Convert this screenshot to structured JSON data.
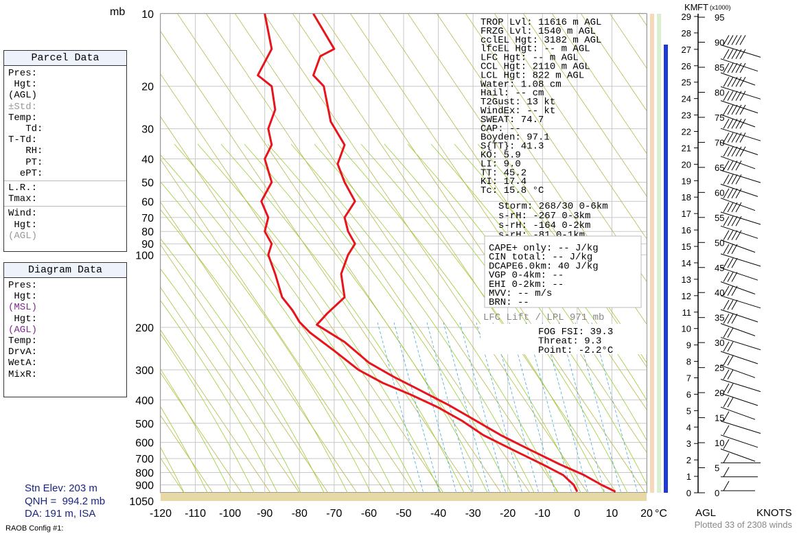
{
  "header": {
    "pressure_unit": "mb"
  },
  "parcel_panel": {
    "title": "Parcel Data",
    "rows": [
      "Pres:",
      " Hgt:",
      "(AGL)",
      "±Std:",
      "Temp:",
      "   Td:",
      "T-Td:",
      "   RH:",
      "   PT:",
      "  ePT:"
    ],
    "rows2": [
      "L.R.:",
      "Tmax:"
    ],
    "rows3": [
      "Wind:",
      " Hgt:",
      "(AGL)"
    ]
  },
  "diagram_panel": {
    "title": "Diagram Data",
    "rows": [
      "Pres:",
      " Hgt:",
      "(MSL)",
      " Hgt:",
      "(AGL)",
      "Temp:",
      "",
      "DrvA:",
      "WetA:",
      "MixR:"
    ]
  },
  "station": {
    "elev": "Stn Elev: 203 m",
    "qnh": "QNH =  994.2 mb",
    "da": "DA: 191 m, ISA"
  },
  "config_label": "RAOB Config #1:",
  "footer": "Plotted 33 of 2308 winds",
  "indices": [
    "    TROP Lvl: 11616 m AGL",
    "    FRZG Lvl:  1540 m AGL",
    "    cclEL Hgt:  3182 m AGL",
    "    lfcEL Hgt:    -- m AGL",
    "     LFC Hgt:    -- m AGL",
    "     CCL Hgt:  2110 m AGL",
    "     LCL Hgt:   822 m AGL",
    "       Water:  1.08 cm",
    "        Hail:    -- cm",
    "      T2Gust:    13 kt",
    "     WindEx:    -- kt",
    "      SWEAT:  74.7",
    "        CAP:   --",
    "     Boyden:  97.1",
    "      S{TT}:  41.3",
    "         KO:   5.9",
    "         LI:   9.0",
    "         TT:  45.2",
    "         KI:  17.4",
    "         Tc:  15.8 °C"
  ],
  "storm": [
    "   Storm: 268/30 0-6km",
    "   s-rH: -267  0-3km",
    "   s-rH: -164  0-2km",
    "   s-rH:  -81  0-1km"
  ],
  "cape": [
    " CAPE+ only:     -- J/kg",
    "  CIN total:     -- J/kg",
    "DCAPE6.0km:     40 J/kg",
    "  VGP 0-4km:     --",
    "  EHI 0-2km:     --",
    "         MVV:     -- m/s",
    "         BRN:     --"
  ],
  "lfc_lift": "LFC Lift / LPL 971 mb",
  "fog": [
    "FOG FSI: 39.3",
    " Threat:  9.3",
    "  Point: -2.2°C"
  ],
  "chart_data": {
    "type": "line",
    "title": "",
    "xlabel": "°C",
    "ylabel": "mb",
    "x_ticks": [
      -120,
      -110,
      -100,
      -90,
      -80,
      -70,
      -60,
      -50,
      -40,
      -30,
      -20,
      -10,
      0,
      10,
      20
    ],
    "p_ticks": [
      10,
      20,
      30,
      40,
      50,
      60,
      70,
      80,
      90,
      100,
      200,
      300,
      400,
      500,
      600,
      700,
      800,
      900,
      1050
    ],
    "xlim": [
      -120,
      20
    ],
    "plim": [
      10,
      1050
    ],
    "series": [
      {
        "name": "",
        "points": [
          [
            -76,
            10
          ],
          [
            -70,
            14
          ],
          [
            -74,
            15
          ],
          [
            -76,
            18
          ],
          [
            -73,
            20
          ],
          [
            -71,
            28
          ],
          [
            -67,
            35
          ],
          [
            -69,
            42
          ],
          [
            -67,
            50
          ],
          [
            -64,
            60
          ],
          [
            -67,
            70
          ],
          [
            -66,
            80
          ],
          [
            -64,
            90
          ],
          [
            -66,
            100
          ],
          [
            -68,
            120
          ],
          [
            -67,
            150
          ],
          [
            -72,
            175
          ],
          [
            -75,
            195
          ],
          [
            -67,
            230
          ],
          [
            -60,
            280
          ],
          [
            -53,
            320
          ],
          [
            -46,
            360
          ],
          [
            -37,
            420
          ],
          [
            -30,
            480
          ],
          [
            -22,
            560
          ],
          [
            -13,
            650
          ],
          [
            -5,
            740
          ],
          [
            2,
            820
          ],
          [
            7,
            900
          ],
          [
            11,
            960
          ]
        ]
      },
      {
        "name": "",
        "points": [
          [
            -90,
            10
          ],
          [
            -88,
            14
          ],
          [
            -92,
            18
          ],
          [
            -88,
            20
          ],
          [
            -87,
            25
          ],
          [
            -89,
            30
          ],
          [
            -88,
            35
          ],
          [
            -90,
            40
          ],
          [
            -88,
            50
          ],
          [
            -91,
            60
          ],
          [
            -89,
            70
          ],
          [
            -90,
            80
          ],
          [
            -88,
            90
          ],
          [
            -89,
            100
          ],
          [
            -87,
            120
          ],
          [
            -85,
            150
          ],
          [
            -82,
            170
          ],
          [
            -80,
            190
          ],
          [
            -77,
            210
          ],
          [
            -70,
            250
          ],
          [
            -63,
            300
          ],
          [
            -56,
            340
          ],
          [
            -48,
            380
          ],
          [
            -40,
            430
          ],
          [
            -33,
            490
          ],
          [
            -27,
            560
          ],
          [
            -18,
            650
          ],
          [
            -10,
            740
          ],
          [
            -4,
            820
          ],
          [
            -1,
            900
          ],
          [
            0,
            960
          ]
        ]
      }
    ],
    "wind_heights_km": [
      0,
      1,
      2,
      3,
      4,
      5,
      6,
      7,
      8,
      9,
      10,
      11,
      12,
      13,
      14,
      15,
      16,
      17,
      18,
      19,
      20,
      21,
      22,
      23,
      24,
      25,
      26,
      27,
      28,
      29
    ],
    "ft_ticks_x1000": [
      0,
      5,
      10,
      15,
      20,
      25,
      30,
      35,
      40,
      45,
      50,
      55,
      60,
      65,
      70,
      75,
      80,
      85,
      90,
      95
    ],
    "wind_axis_labels": {
      "km": "KM",
      "ft": "FT",
      "ft_note": "(x1000)",
      "agl": "AGL",
      "knots": "KNOTS"
    }
  }
}
